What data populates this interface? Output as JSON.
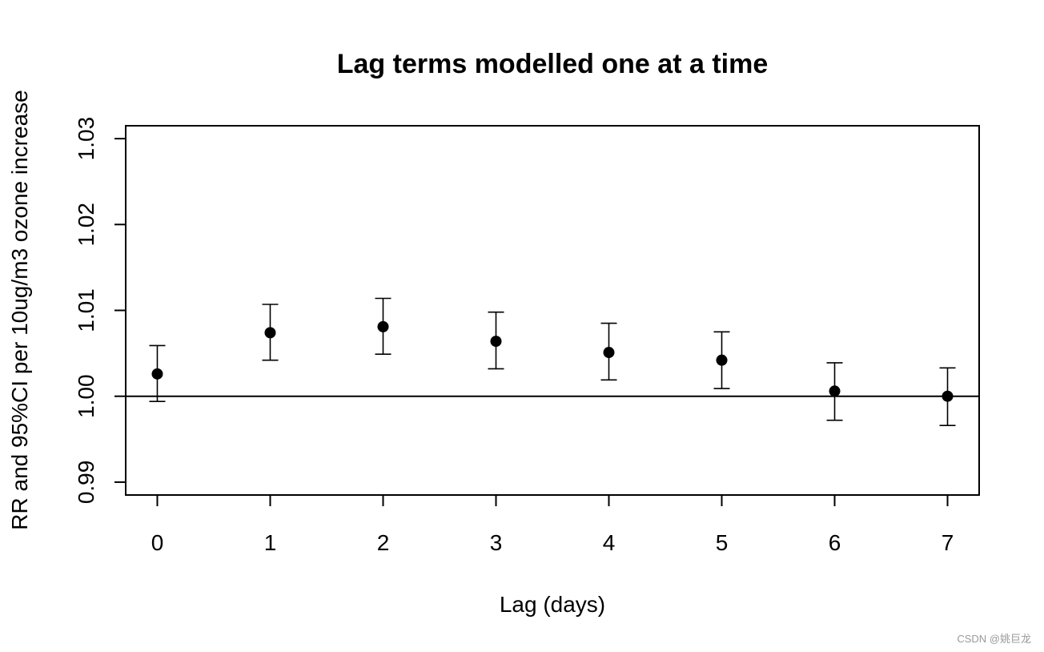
{
  "chart_data": {
    "type": "scatter",
    "title": "Lag terms modelled one at a time",
    "xlabel": "Lag (days)",
    "ylabel": "RR and 95%CI per 10ug/m3 ozone increase",
    "x": [
      0,
      1,
      2,
      3,
      4,
      5,
      6,
      7
    ],
    "y": [
      1.0026,
      1.0074,
      1.0081,
      1.0064,
      1.0051,
      1.0042,
      1.0006,
      1.0
    ],
    "lower": [
      0.9994,
      1.0042,
      1.0049,
      1.0032,
      1.0019,
      1.0009,
      0.9972,
      0.9966
    ],
    "upper": [
      1.0059,
      1.0107,
      1.0114,
      1.0098,
      1.0085,
      1.0075,
      1.0039,
      1.0033
    ],
    "xlim": [
      -0.28,
      7.28
    ],
    "ylim": [
      0.9885,
      1.0315
    ],
    "xticks": [
      "0",
      "1",
      "2",
      "3",
      "4",
      "5",
      "6",
      "7"
    ],
    "yticks": [
      0.99,
      1.0,
      1.01,
      1.02,
      1.03
    ],
    "ytick_labels": [
      "0.99",
      "1.00",
      "1.01",
      "1.02",
      "1.03"
    ],
    "reference_line": 1.0,
    "grid": false,
    "legend": "none"
  },
  "watermark": "CSDN @姚巨龙"
}
